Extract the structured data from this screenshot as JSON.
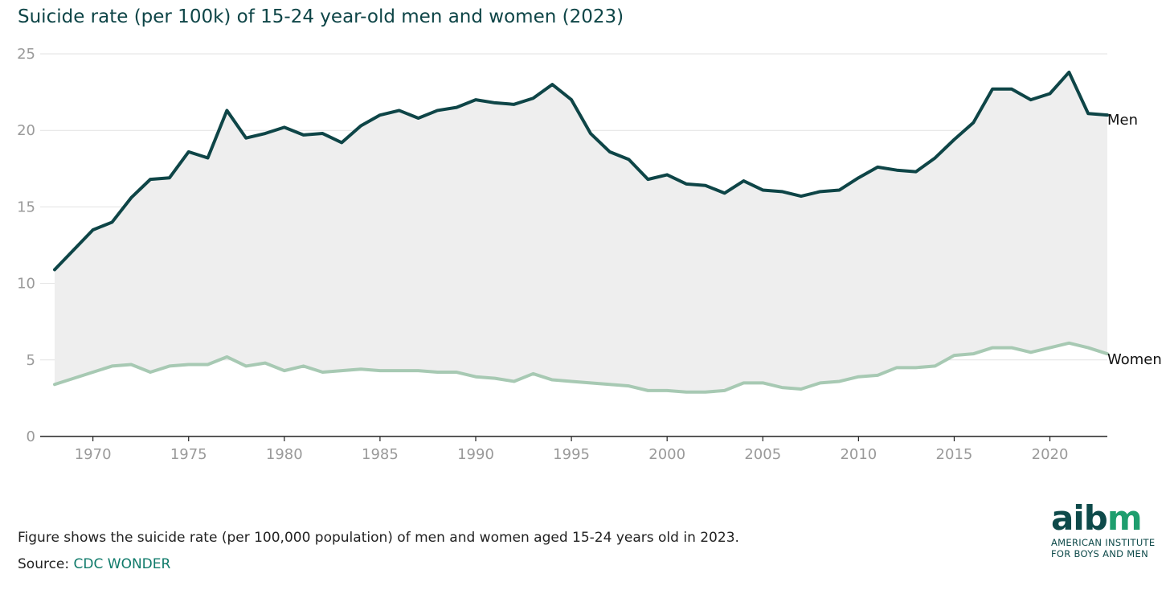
{
  "title": "Suicide rate (per 100k) of 15-24 year-old men and women (2023)",
  "description": "Figure shows the suicide rate (per 100,000 population) of men and women aged 15-24 years old in 2023.",
  "source_prefix": "Source: ",
  "source_link": "CDC WONDER",
  "logo": {
    "wordmark_left": "aib",
    "wordmark_right": "m",
    "line1": "AMERICAN INSTITUTE",
    "line2": "FOR BOYS AND MEN"
  },
  "colors": {
    "men": "#0e4547",
    "women": "#a7c9b3",
    "fill": "#eeeeee",
    "grid": "#e2e2e2",
    "axis": "#222222",
    "accent_green": "#1e9e6e"
  },
  "chart_data": {
    "type": "line",
    "title": "Suicide rate (per 100k) of 15-24 year-old men and women (2023)",
    "xlim": [
      1968,
      2023
    ],
    "ylim": [
      0,
      25
    ],
    "yticks": [
      0,
      5,
      10,
      15,
      20,
      25
    ],
    "xticks": [
      1970,
      1975,
      1980,
      1985,
      1990,
      1995,
      2000,
      2005,
      2010,
      2015,
      2020
    ],
    "grid": true,
    "area_between_series": true,
    "x": [
      1968,
      1969,
      1970,
      1971,
      1972,
      1973,
      1974,
      1975,
      1976,
      1977,
      1978,
      1979,
      1980,
      1981,
      1982,
      1983,
      1984,
      1985,
      1986,
      1987,
      1988,
      1989,
      1990,
      1991,
      1992,
      1993,
      1994,
      1995,
      1996,
      1997,
      1998,
      1999,
      2000,
      2001,
      2002,
      2003,
      2004,
      2005,
      2006,
      2007,
      2008,
      2009,
      2010,
      2011,
      2012,
      2013,
      2014,
      2015,
      2016,
      2017,
      2018,
      2019,
      2020,
      2021,
      2022,
      2023
    ],
    "series": [
      {
        "name": "Men",
        "values": [
          10.9,
          12.2,
          13.5,
          14.0,
          15.6,
          16.8,
          16.9,
          18.6,
          18.2,
          21.3,
          19.5,
          19.8,
          20.2,
          19.7,
          19.8,
          19.2,
          20.3,
          21.0,
          21.3,
          20.8,
          21.3,
          21.5,
          22.0,
          21.8,
          21.7,
          22.1,
          23.0,
          22.0,
          19.8,
          18.6,
          18.1,
          16.8,
          17.1,
          16.5,
          16.4,
          15.9,
          16.7,
          16.1,
          16.0,
          15.7,
          16.0,
          16.1,
          16.9,
          17.6,
          17.4,
          17.3,
          18.2,
          19.4,
          20.5,
          22.7,
          22.7,
          22.0,
          22.4,
          23.8,
          21.1,
          21.0
        ]
      },
      {
        "name": "Women",
        "values": [
          3.4,
          3.8,
          4.2,
          4.6,
          4.7,
          4.2,
          4.6,
          4.7,
          4.7,
          5.2,
          4.6,
          4.8,
          4.3,
          4.6,
          4.2,
          4.3,
          4.4,
          4.3,
          4.3,
          4.3,
          4.2,
          4.2,
          3.9,
          3.8,
          3.6,
          4.1,
          3.7,
          3.6,
          3.5,
          3.4,
          3.3,
          3.0,
          3.0,
          2.9,
          2.9,
          3.0,
          3.5,
          3.5,
          3.2,
          3.1,
          3.5,
          3.6,
          3.9,
          4.0,
          4.5,
          4.5,
          4.6,
          5.3,
          5.4,
          5.8,
          5.8,
          5.5,
          5.8,
          6.1,
          5.8,
          5.4
        ]
      }
    ]
  }
}
